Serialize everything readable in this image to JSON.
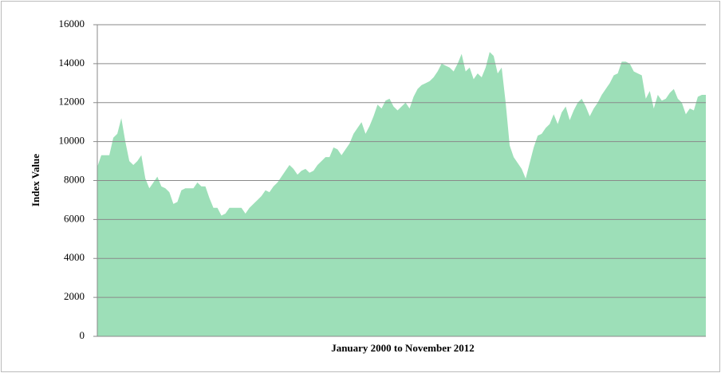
{
  "chart_data": {
    "type": "area",
    "xlabel": "January 2000 to November 2012",
    "ylabel": "Index Value",
    "color": "#9ddfb8",
    "values": [
      8700,
      9300,
      9300,
      9300,
      10200,
      10400,
      11200,
      10000,
      9000,
      8800,
      9000,
      9300,
      8100,
      7600,
      7900,
      8200,
      7700,
      7600,
      7400,
      6800,
      6900,
      7500,
      7600,
      7600,
      7600,
      7900,
      7700,
      7700,
      7100,
      6600,
      6600,
      6200,
      6300,
      6600,
      6600,
      6600,
      6600,
      6300,
      6600,
      6800,
      7000,
      7200,
      7500,
      7400,
      7700,
      7900,
      8200,
      8500,
      8800,
      8600,
      8300,
      8500,
      8600,
      8400,
      8500,
      8800,
      9000,
      9200,
      9200,
      9700,
      9600,
      9300,
      9600,
      9900,
      10400,
      10700,
      11000,
      10400,
      10800,
      11300,
      11900,
      11700,
      12100,
      12200,
      11800,
      11600,
      11800,
      12000,
      11700,
      12300,
      12700,
      12900,
      13000,
      13100,
      13300,
      13600,
      14000,
      13900,
      13800,
      13600,
      14000,
      14500,
      13600,
      13800,
      13200,
      13500,
      13300,
      13800,
      14600,
      14400,
      13500,
      13800,
      12000,
      9800,
      9200,
      8900,
      8600,
      8100,
      8900,
      9700,
      10300,
      10400,
      10700,
      10900,
      11400,
      10900,
      11500,
      11800,
      11100,
      11600,
      12000,
      12200,
      11800,
      11300,
      11700,
      12000,
      12400,
      12700,
      13000,
      13400,
      13500,
      14100,
      14100,
      14000,
      13600,
      13500,
      13400,
      12200,
      12600,
      11700,
      12400,
      12100,
      12200,
      12500,
      12700,
      12200,
      12000,
      11400,
      11700,
      11600,
      12300,
      12400,
      12400
    ],
    "ylim": [
      0,
      16000
    ],
    "yticks": [
      0,
      2000,
      4000,
      6000,
      8000,
      10000,
      12000,
      14000,
      16000
    ],
    "grid": true
  }
}
